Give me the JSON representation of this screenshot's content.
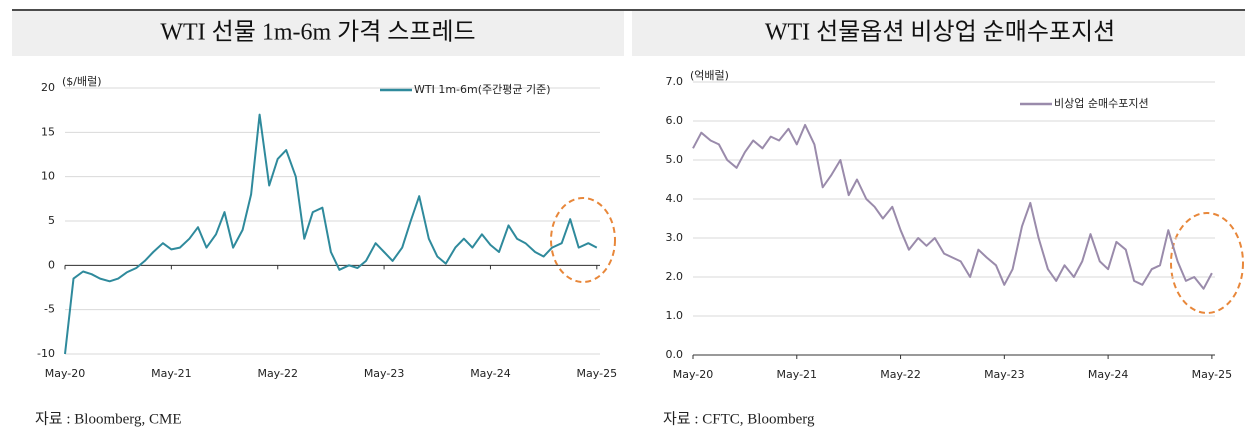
{
  "chart_data": [
    {
      "type": "line",
      "title": "WTI 선물 1m-6m 가격 스프레드",
      "unit_label": "($/배럴)",
      "source": "자료 : Bloomberg, CME",
      "x": [
        2020.37,
        2020.45,
        2020.54,
        2020.62,
        2020.7,
        2020.79,
        2020.87,
        2020.95,
        2021.04,
        2021.12,
        2021.2,
        2021.29,
        2021.37,
        2021.45,
        2021.54,
        2021.62,
        2021.7,
        2021.79,
        2021.87,
        2021.95,
        2022.04,
        2022.12,
        2022.2,
        2022.29,
        2022.37,
        2022.45,
        2022.54,
        2022.62,
        2022.7,
        2022.79,
        2022.87,
        2022.95,
        2023.04,
        2023.12,
        2023.2,
        2023.29,
        2023.37,
        2023.45,
        2023.54,
        2023.62,
        2023.7,
        2023.79,
        2023.87,
        2023.95,
        2024.04,
        2024.12,
        2024.2,
        2024.29,
        2024.37,
        2024.45,
        2024.54,
        2024.62,
        2024.7,
        2024.79,
        2024.87,
        2024.95,
        2025.04,
        2025.12,
        2025.2,
        2025.29,
        2025.37
      ],
      "series": [
        {
          "name": "WTI 1m-6m(주간평균 기준)",
          "color": "#2f8a9c",
          "values": [
            -10,
            -1.5,
            -0.7,
            -1,
            -1.5,
            -1.8,
            -1.5,
            -0.8,
            -0.3,
            0.5,
            1.5,
            2.5,
            1.8,
            2,
            3,
            4.3,
            2,
            3.5,
            6,
            2,
            4,
            8,
            17,
            9,
            12,
            13,
            10,
            3,
            6,
            6.5,
            1.5,
            -0.5,
            0,
            -0.3,
            0.5,
            2.5,
            1.5,
            0.5,
            2,
            5,
            7.8,
            3,
            1,
            0.2,
            2,
            3,
            2,
            3.5,
            2.3,
            1.5,
            4.5,
            3,
            2.5,
            1.5,
            1,
            2,
            2.5,
            5.2,
            2,
            2.5,
            2
          ]
        }
      ],
      "xlim": [
        2020.37,
        2025.4
      ],
      "xticks": [
        {
          "value": 2020.37,
          "label": "May-20"
        },
        {
          "value": 2021.37,
          "label": "May-21"
        },
        {
          "value": 2022.37,
          "label": "May-22"
        },
        {
          "value": 2023.37,
          "label": "May-23"
        },
        {
          "value": 2024.37,
          "label": "May-24"
        },
        {
          "value": 2025.37,
          "label": "May-25"
        }
      ],
      "ylim": [
        -10,
        20
      ],
      "yticks": [
        -10,
        -5,
        0,
        5,
        10,
        15,
        20
      ],
      "grid": true
    },
    {
      "type": "line",
      "title": "WTI 선물옵션 비상업 순매수포지션",
      "unit_label": "(억배럴)",
      "source": "자료 : CFTC, Bloomberg",
      "x": [
        2020.37,
        2020.45,
        2020.54,
        2020.62,
        2020.7,
        2020.79,
        2020.87,
        2020.95,
        2021.04,
        2021.12,
        2021.2,
        2021.29,
        2021.37,
        2021.45,
        2021.54,
        2021.62,
        2021.7,
        2021.79,
        2021.87,
        2021.95,
        2022.04,
        2022.12,
        2022.2,
        2022.29,
        2022.37,
        2022.45,
        2022.54,
        2022.62,
        2022.7,
        2022.79,
        2022.87,
        2022.95,
        2023.04,
        2023.12,
        2023.2,
        2023.29,
        2023.37,
        2023.45,
        2023.54,
        2023.62,
        2023.7,
        2023.79,
        2023.87,
        2023.95,
        2024.04,
        2024.12,
        2024.2,
        2024.29,
        2024.37,
        2024.45,
        2024.54,
        2024.62,
        2024.7,
        2024.79,
        2024.87,
        2024.95,
        2025.04,
        2025.12,
        2025.2,
        2025.29,
        2025.37
      ],
      "series": [
        {
          "name": "비상업 순매수포지션",
          "color": "#9a8bab",
          "values": [
            5.3,
            5.7,
            5.5,
            5.4,
            5,
            4.8,
            5.2,
            5.5,
            5.3,
            5.6,
            5.5,
            5.8,
            5.4,
            5.9,
            5.4,
            4.3,
            4.6,
            5,
            4.1,
            4.5,
            4,
            3.8,
            3.5,
            3.8,
            3.2,
            2.7,
            3,
            2.8,
            3,
            2.6,
            2.5,
            2.4,
            2,
            2.7,
            2.5,
            2.3,
            1.8,
            2.2,
            3.3,
            3.9,
            3,
            2.2,
            1.9,
            2.3,
            2,
            2.4,
            3.1,
            2.4,
            2.2,
            2.9,
            2.7,
            1.9,
            1.8,
            2.2,
            2.3,
            3.2,
            2.4,
            1.9,
            2,
            1.7,
            2.1
          ]
        }
      ],
      "xlim": [
        2020.37,
        2025.4
      ],
      "xticks": [
        {
          "value": 2020.37,
          "label": "May-20"
        },
        {
          "value": 2021.37,
          "label": "May-21"
        },
        {
          "value": 2022.37,
          "label": "May-22"
        },
        {
          "value": 2023.37,
          "label": "May-23"
        },
        {
          "value": 2024.37,
          "label": "May-24"
        },
        {
          "value": 2025.37,
          "label": "May-25"
        }
      ],
      "ylim": [
        0,
        7
      ],
      "yticks": [
        {
          "value": 0,
          "label": "0.0"
        },
        {
          "value": 1,
          "label": "1.0"
        },
        {
          "value": 2,
          "label": "2.0"
        },
        {
          "value": 3,
          "label": "3.0"
        },
        {
          "value": 4,
          "label": "4.0"
        },
        {
          "value": 5,
          "label": "5.0"
        },
        {
          "value": 6,
          "label": "6.0"
        },
        {
          "value": 7,
          "label": "7.0"
        }
      ],
      "grid": true
    }
  ]
}
